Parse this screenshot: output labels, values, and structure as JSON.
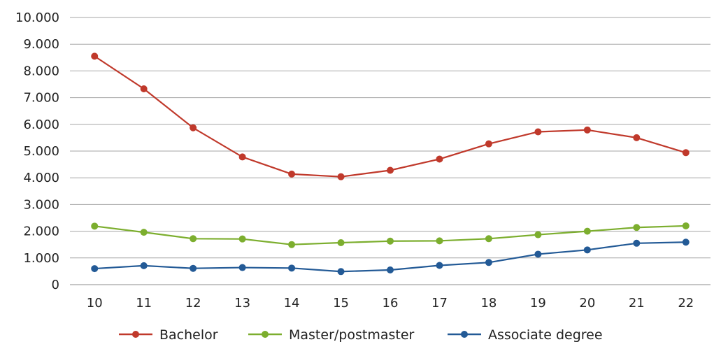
{
  "chart_data": {
    "type": "line",
    "x": [
      "10",
      "11",
      "12",
      "13",
      "14",
      "15",
      "16",
      "17",
      "18",
      "19",
      "20",
      "21",
      "22"
    ],
    "y_ticks": [
      "0",
      "1.000",
      "2.000",
      "3.000",
      "4.000",
      "5.000",
      "6.000",
      "7.000",
      "8.000",
      "9.000",
      "10.000"
    ],
    "ylim": [
      0,
      10000
    ],
    "grid": true,
    "legend_position": "bottom",
    "series": [
      {
        "name": "Bachelor",
        "color": "#c0392b",
        "values": [
          8550,
          7330,
          5870,
          4780,
          4140,
          4040,
          4280,
          4700,
          5270,
          5720,
          5790,
          5500,
          4940
        ]
      },
      {
        "name": "Master/postmaster",
        "color": "#7cae2e",
        "values": [
          2190,
          1960,
          1720,
          1710,
          1500,
          1570,
          1630,
          1640,
          1720,
          1870,
          2000,
          2140,
          2200
        ]
      },
      {
        "name": "Associate degree",
        "color": "#235a96",
        "values": [
          600,
          710,
          610,
          640,
          620,
          490,
          550,
          720,
          830,
          1140,
          1300,
          1550,
          1590
        ]
      }
    ]
  }
}
